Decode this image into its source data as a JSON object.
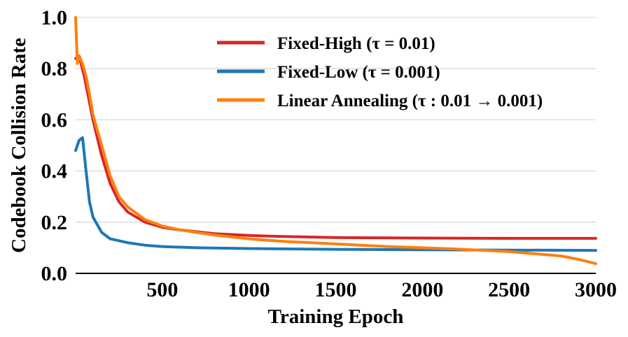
{
  "chart_data": {
    "type": "line",
    "xlabel": "Training Epoch",
    "ylabel": "Codebook Collision Rate",
    "xlim": [
      0,
      3000
    ],
    "ylim": [
      0.0,
      1.0
    ],
    "x_ticks": [
      "500",
      "1000",
      "1500",
      "2000",
      "2500",
      "3000"
    ],
    "x_tick_values": [
      500,
      1000,
      1500,
      2000,
      2500,
      3000
    ],
    "y_ticks": [
      "0.0",
      "0.2",
      "0.4",
      "0.6",
      "0.8",
      "1.0"
    ],
    "y_tick_values": [
      0.0,
      0.2,
      0.4,
      0.6,
      0.8,
      1.0
    ],
    "grid": "horizontal",
    "legend_position": "top-right",
    "series": [
      {
        "name": "Fixed-High (τ = 0.01)",
        "color": "#d62728",
        "x": [
          0,
          20,
          50,
          100,
          150,
          200,
          250,
          300,
          400,
          500,
          600,
          800,
          1000,
          1200,
          1500,
          2000,
          2500,
          3000
        ],
        "y": [
          0.84,
          0.85,
          0.77,
          0.6,
          0.46,
          0.35,
          0.28,
          0.24,
          0.2,
          0.18,
          0.17,
          0.155,
          0.148,
          0.144,
          0.14,
          0.138,
          0.137,
          0.137
        ]
      },
      {
        "name": "Fixed-Low (τ = 0.001)",
        "color": "#1f77b4",
        "x": [
          0,
          20,
          40,
          60,
          80,
          100,
          150,
          200,
          300,
          400,
          500,
          700,
          1000,
          1500,
          2000,
          2500,
          3000
        ],
        "y": [
          0.48,
          0.52,
          0.53,
          0.4,
          0.28,
          0.22,
          0.16,
          0.135,
          0.12,
          0.11,
          0.105,
          0.1,
          0.097,
          0.094,
          0.092,
          0.091,
          0.09
        ]
      },
      {
        "name": "Linear Annealing (τ : 0.01 → 0.001)",
        "color": "#ff7f0e",
        "x": [
          0,
          10,
          20,
          40,
          60,
          80,
          100,
          150,
          200,
          250,
          300,
          400,
          500,
          600,
          800,
          1000,
          1200,
          1500,
          1800,
          2000,
          2200,
          2500,
          2800,
          2900,
          3000
        ],
        "y": [
          1.0,
          0.82,
          0.85,
          0.82,
          0.77,
          0.7,
          0.62,
          0.5,
          0.38,
          0.3,
          0.26,
          0.21,
          0.185,
          0.17,
          0.15,
          0.135,
          0.125,
          0.115,
          0.105,
          0.1,
          0.095,
          0.085,
          0.068,
          0.055,
          0.038
        ]
      }
    ]
  }
}
